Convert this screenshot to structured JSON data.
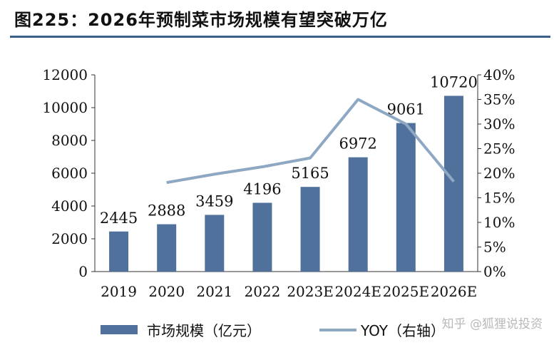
{
  "title": "图225：2026年预制菜市场规模有望突破万亿",
  "watermark": "知乎 @狐狸说投资",
  "chart_data": {
    "type": "bar",
    "categories": [
      "2019",
      "2020",
      "2021",
      "2022",
      "2023E",
      "2024E",
      "2025E",
      "2026E"
    ],
    "series": [
      {
        "name": "市场规模（亿元）",
        "type": "bar",
        "axis": "left",
        "values": [
          2445,
          2888,
          3459,
          4196,
          5165,
          6972,
          9061,
          10720
        ],
        "labels": [
          "2445",
          "2888",
          "3459",
          "4196",
          "5165",
          "6972",
          "9061",
          "10720"
        ],
        "color": "#4f719b"
      },
      {
        "name": "YOY（右轴）",
        "type": "line",
        "axis": "right",
        "values": [
          null,
          18.1,
          19.8,
          21.3,
          23.1,
          35.0,
          30.0,
          18.3
        ],
        "color": "#8ea8c3"
      }
    ],
    "ylim_left": [
      0,
      12000
    ],
    "yticks_left": [
      "0",
      "2000",
      "4000",
      "6000",
      "8000",
      "10000",
      "12000"
    ],
    "ylim_right": [
      0,
      40
    ],
    "yticks_right": [
      "0%",
      "5%",
      "10%",
      "15%",
      "20%",
      "25%",
      "30%",
      "35%",
      "40%"
    ],
    "legend_position": "bottom",
    "grid": false
  }
}
